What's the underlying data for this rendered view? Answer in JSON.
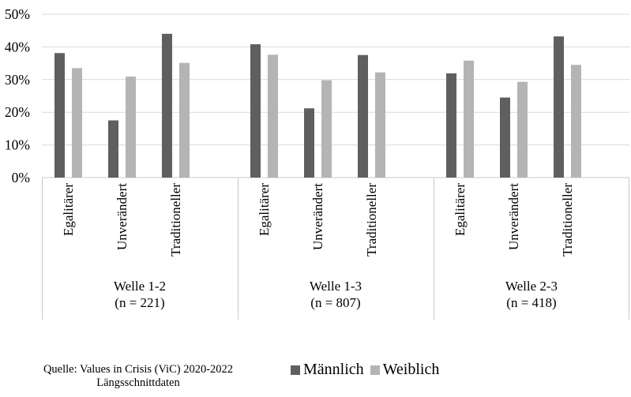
{
  "chart_data": {
    "type": "bar",
    "y_ticks": [
      "0%",
      "10%",
      "20%",
      "30%",
      "40%",
      "50%"
    ],
    "ylim": [
      0,
      50
    ],
    "grid": true,
    "groups": [
      {
        "label": "Welle 1-2",
        "n_label": "(n = 221)",
        "categories": [
          "Egalitärer",
          "Unverändert",
          "Traditioneller"
        ],
        "series": [
          {
            "name": "Männlich",
            "values": [
              38.1,
              17.5,
              44.0
            ]
          },
          {
            "name": "Weiblich",
            "values": [
              33.5,
              30.9,
              35.1
            ]
          }
        ]
      },
      {
        "label": "Welle 1-3",
        "n_label": "(n = 807)",
        "categories": [
          "Egalitärer",
          "Unverändert",
          "Traditioneller"
        ],
        "series": [
          {
            "name": "Männlich",
            "values": [
              40.8,
              21.2,
              37.5
            ]
          },
          {
            "name": "Weiblich",
            "values": [
              37.6,
              29.8,
              32.2
            ]
          }
        ]
      },
      {
        "label": "Welle 2-3",
        "n_label": "(n = 418)",
        "categories": [
          "Egalitärer",
          "Unverändert",
          "Traditioneller"
        ],
        "series": [
          {
            "name": "Männlich",
            "values": [
              31.9,
              24.5,
              43.2
            ]
          },
          {
            "name": "Weiblich",
            "values": [
              35.8,
              29.3,
              34.5
            ]
          }
        ]
      }
    ],
    "legend_position": "bottom",
    "colors": {
      "Männlich": "#5f5f5f",
      "Weiblich": "#b4b4b4"
    }
  },
  "legend": {
    "male": "Männlich",
    "female": "Weiblich"
  },
  "source": {
    "line1": "Quelle: Values in Crisis (ViC) 2020-2022",
    "line2": "Längsschnittdaten"
  }
}
